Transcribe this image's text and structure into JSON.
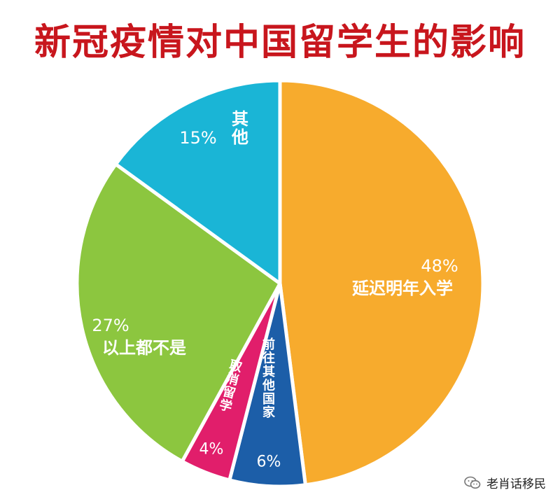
{
  "title": "新冠疫情对中国留学生的影响",
  "account": "老肖话移民",
  "chart_data": {
    "type": "pie",
    "title": "新冠疫情对中国留学生的影响",
    "slices": [
      {
        "label": "延迟明年入学",
        "value": 48,
        "pct_text": "48%",
        "color": "#f7ab2d"
      },
      {
        "label": "前往其他国家",
        "value": 6,
        "pct_text": "6%",
        "color": "#1c5ea8"
      },
      {
        "label": "取消留学",
        "value": 4,
        "pct_text": "4%",
        "color": "#e11e6b"
      },
      {
        "label": "以上都不是",
        "value": 27,
        "pct_text": "27%",
        "color": "#8cc63f"
      },
      {
        "label": "其他",
        "value": 15,
        "pct_text": "15%",
        "color": "#1ab5d6"
      }
    ]
  }
}
